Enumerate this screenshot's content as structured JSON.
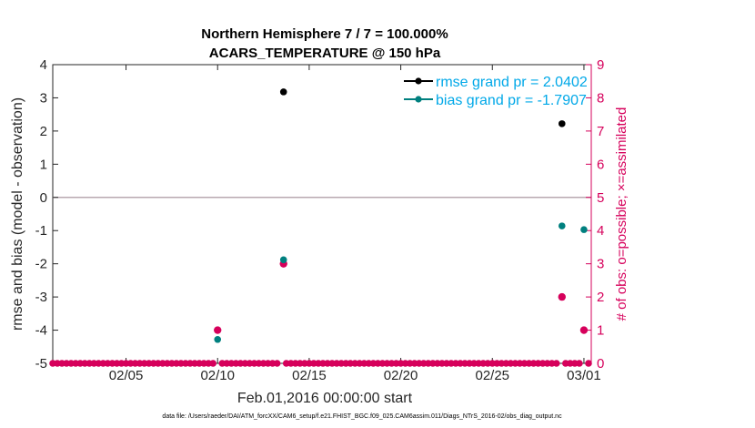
{
  "chart_data": {
    "type": "scatter",
    "title": [
      "Northern Hemisphere 7 / 7 = 100.000%",
      "ACARS_TEMPERATURE @ 150 hPa"
    ],
    "xlabel": "Feb.01,2016 00:00:00 start",
    "ylabel": "rmse and bias (model - observation)",
    "y2label": "# of obs: o=possible; ×=assimilated",
    "x_ticks": [
      "02/05",
      "02/10",
      "02/15",
      "02/20",
      "02/25",
      "03/01"
    ],
    "x_tick_days": [
      4,
      9,
      14,
      19,
      24,
      29
    ],
    "xlim": [
      0,
      29.4
    ],
    "ylim": [
      -5,
      4
    ],
    "y_ticks": [
      "-5",
      "-4",
      "-3",
      "-2",
      "-1",
      "0",
      "1",
      "2",
      "3",
      "4"
    ],
    "y2lim": [
      0,
      9
    ],
    "y2_ticks": [
      "0",
      "1",
      "2",
      "3",
      "4",
      "5",
      "6",
      "7",
      "8",
      "9"
    ],
    "zero_line": 0,
    "legend_placement": "top-right",
    "series": [
      {
        "name": "rmse grand pr = 2.0402",
        "color": "#000000",
        "axis": "left",
        "points": [
          [
            12.6,
            3.18
          ],
          [
            27.8,
            2.22
          ]
        ]
      },
      {
        "name": "bias grand pr = -1.7907",
        "color": "#00807f",
        "axis": "left",
        "points": [
          [
            9.0,
            -4.28
          ],
          [
            12.6,
            -1.88
          ],
          [
            27.8,
            -0.86
          ],
          [
            29.0,
            -0.97
          ]
        ]
      },
      {
        "name": "obs possible",
        "color": "#d6005b",
        "axis": "right",
        "marker": "o",
        "x_start": 0,
        "x_step": 0.25,
        "count": 118,
        "nonzero": [
          [
            9.0,
            1
          ],
          [
            12.6,
            3
          ],
          [
            27.8,
            2
          ],
          [
            29.0,
            1
          ]
        ]
      }
    ]
  },
  "footer": "data file: /Users/raeder/DAI/ATM_forcXX/CAM6_setup/f.e21.FHIST_BGC.f09_025.CAM6assim.011/Diags_NTrS_2016-02/obs_diag_output.nc"
}
